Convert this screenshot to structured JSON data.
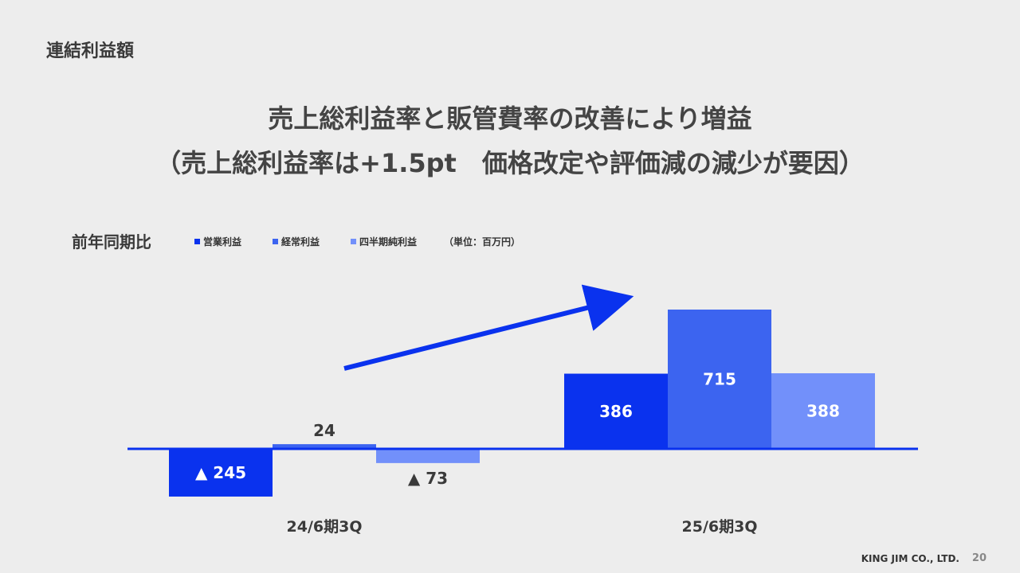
{
  "header": {
    "section_title": "連結利益額",
    "headline_line1": "売上総利益率と販管費率の改善により増益",
    "headline_line2": "（売上総利益率は+1.5pt　価格改定や評価減の減少が要因）"
  },
  "legend": {
    "comparison_label": "前年同期比",
    "unit": "（単位：百万円）"
  },
  "chart_data": {
    "type": "bar",
    "categories": [
      "24/6期3Q",
      "25/6期3Q"
    ],
    "series": [
      {
        "name": "営業利益",
        "values": [
          -245,
          386
        ],
        "labels": [
          "▲ 245",
          "386"
        ],
        "color": "#0a32ee"
      },
      {
        "name": "経常利益",
        "values": [
          24,
          715
        ],
        "labels": [
          "24",
          "715"
        ],
        "color": "#3c64f0"
      },
      {
        "name": "四半期純利益",
        "values": [
          -73,
          388
        ],
        "labels": [
          "▲ 73",
          "388"
        ],
        "color": "#7290fa"
      }
    ],
    "ylim": [
      -245,
      715
    ],
    "grid": false,
    "legend_position": "top-left",
    "annotation": "upward-trend-arrow"
  },
  "footer": {
    "company": "KING JIM CO., LTD.",
    "page_number": "20"
  }
}
